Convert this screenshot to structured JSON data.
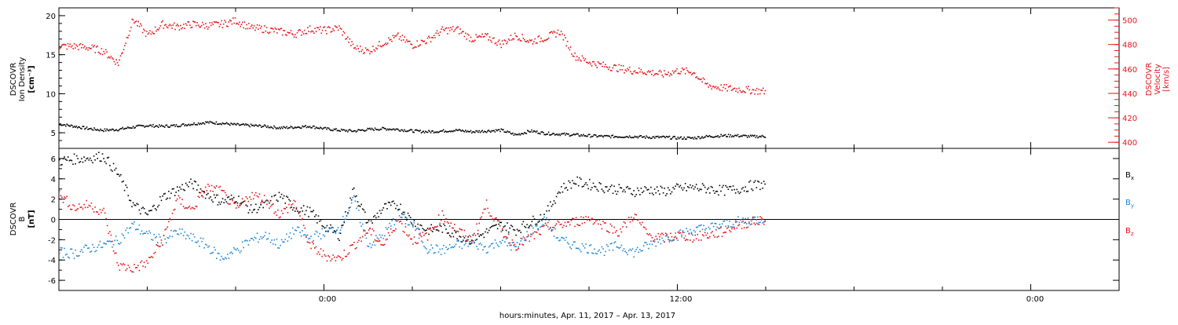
{
  "figure": {
    "xlabel": "hours:minutes, Apr. 11, 2017 – Apr. 13, 2017",
    "x_tick_labels": [
      "0:00",
      "12:00",
      "0:00"
    ]
  },
  "chart_data": [
    {
      "type": "scatter",
      "panel": "top",
      "ylabel_left": [
        "DSCOVR",
        "Ion Density",
        "[cm⁻³]"
      ],
      "ylabel_right": [
        "DSCOVR",
        "Velocity",
        "[km/s]"
      ],
      "x_unit": "hours since Apr. 11, 2017 0:00",
      "xlim": [
        -9,
        27
      ],
      "ylim_left": [
        3,
        21
      ],
      "ylim_right": [
        395,
        510
      ],
      "left_ticks": [
        5,
        10,
        15,
        20
      ],
      "right_ticks": [
        400,
        420,
        440,
        460,
        480,
        500
      ],
      "series": [
        {
          "name": "Ion Density",
          "axis": "left",
          "color": "#000000",
          "x": [
            -9.0,
            -8.5,
            -8.0,
            -7.5,
            -7.0,
            -6.5,
            -6.0,
            -5.5,
            -5.0,
            -4.5,
            -4.0,
            -3.5,
            -3.0,
            -2.5,
            -2.0,
            -1.5,
            -1.0,
            -0.5,
            0.0,
            0.5,
            1.0,
            1.5,
            2.0,
            2.5,
            3.0,
            3.5,
            4.0,
            4.5,
            5.0,
            5.5,
            6.0,
            6.5,
            7.0,
            7.5,
            8.0,
            8.5,
            9.0,
            9.5,
            10.0,
            10.5,
            11.0,
            11.5,
            12.0,
            12.5,
            13.0,
            13.5,
            14.0,
            14.5,
            15.0
          ],
          "y": [
            6.2,
            5.9,
            5.6,
            5.4,
            5.5,
            5.8,
            6.0,
            5.9,
            6.0,
            6.2,
            6.4,
            6.3,
            6.1,
            6.0,
            5.9,
            5.7,
            5.8,
            5.9,
            5.6,
            5.4,
            5.3,
            5.5,
            5.6,
            5.5,
            5.3,
            5.2,
            5.3,
            5.4,
            5.2,
            5.3,
            5.4,
            4.8,
            5.3,
            5.0,
            4.9,
            4.8,
            4.7,
            4.6,
            4.6,
            4.6,
            4.5,
            4.5,
            4.4,
            4.4,
            4.6,
            4.7,
            4.7,
            4.6,
            4.6
          ]
        },
        {
          "name": "Velocity",
          "axis": "right",
          "color": "#e8141a",
          "x": [
            -9.0,
            -8.5,
            -8.0,
            -7.5,
            -7.0,
            -6.5,
            -6.0,
            -5.5,
            -5.0,
            -4.5,
            -4.0,
            -3.5,
            -3.0,
            -2.5,
            -2.0,
            -1.5,
            -1.0,
            -0.5,
            0.0,
            0.5,
            1.0,
            1.5,
            2.0,
            2.5,
            3.0,
            3.5,
            4.0,
            4.5,
            5.0,
            5.5,
            6.0,
            6.5,
            7.0,
            7.5,
            8.0,
            8.5,
            9.0,
            9.5,
            10.0,
            10.5,
            11.0,
            11.5,
            12.0,
            12.5,
            13.0,
            13.5,
            14.0,
            14.5,
            15.0
          ],
          "y": [
            479,
            479,
            478,
            475,
            465,
            501,
            488,
            497,
            495,
            497,
            496,
            497,
            500,
            494,
            493,
            491,
            489,
            493,
            492,
            494,
            478,
            475,
            482,
            487,
            480,
            484,
            492,
            493,
            485,
            487,
            481,
            488,
            483,
            486,
            491,
            471,
            466,
            463,
            461,
            459,
            458,
            456,
            459,
            458,
            447,
            445,
            444,
            443,
            442
          ]
        }
      ]
    },
    {
      "type": "scatter",
      "panel": "bottom",
      "ylabel_left": [
        "DSCOVR",
        "B",
        "[nT]"
      ],
      "x_unit": "hours since Apr. 11, 2017 0:00",
      "xlim": [
        -9,
        27
      ],
      "ylim": [
        -7,
        7
      ],
      "y_ticks": [
        -6,
        -4,
        -2,
        0,
        2,
        4,
        6
      ],
      "reference_line": 0,
      "legend_placement": "right",
      "series": [
        {
          "name": "B",
          "subscript": "x",
          "color": "#000000",
          "x": [
            -9.0,
            -8.5,
            -8.0,
            -7.5,
            -7.0,
            -6.5,
            -6.0,
            -5.5,
            -5.0,
            -4.5,
            -4.0,
            -3.5,
            -3.0,
            -2.5,
            -2.0,
            -1.5,
            -1.0,
            -0.5,
            0.0,
            0.5,
            1.0,
            1.5,
            2.0,
            2.5,
            3.0,
            3.5,
            4.0,
            4.5,
            5.0,
            5.5,
            6.0,
            6.5,
            7.0,
            7.5,
            8.0,
            8.5,
            9.0,
            9.5,
            10.0,
            10.5,
            11.0,
            11.5,
            12.0,
            12.5,
            13.0,
            13.5,
            14.0,
            14.5,
            15.0
          ],
          "y": [
            5.8,
            6.0,
            6.1,
            6.3,
            4.5,
            1.5,
            0.5,
            2.2,
            3.0,
            3.6,
            2.5,
            1.8,
            2.2,
            1.0,
            1.5,
            2.4,
            1.2,
            0.8,
            -0.6,
            -1.5,
            3.0,
            -0.5,
            1.2,
            1.5,
            -0.2,
            -1.0,
            -0.8,
            -1.5,
            -2.0,
            -1.2,
            -0.5,
            -1.0,
            -0.2,
            0.5,
            3.0,
            3.8,
            3.5,
            3.2,
            3.0,
            2.8,
            3.0,
            2.8,
            3.1,
            3.2,
            3.1,
            2.9,
            3.0,
            3.4,
            3.5
          ]
        },
        {
          "name": "B",
          "subscript": "y",
          "color": "#1f86d8",
          "x": [
            -9.0,
            -8.5,
            -8.0,
            -7.5,
            -7.0,
            -6.5,
            -6.0,
            -5.5,
            -5.0,
            -4.5,
            -4.0,
            -3.5,
            -3.0,
            -2.5,
            -2.0,
            -1.5,
            -1.0,
            -0.5,
            0.0,
            0.5,
            1.0,
            1.5,
            2.0,
            2.5,
            3.0,
            3.5,
            4.0,
            4.5,
            5.0,
            5.5,
            6.0,
            6.5,
            7.0,
            7.5,
            8.0,
            8.5,
            9.0,
            9.5,
            10.0,
            10.5,
            11.0,
            11.5,
            12.0,
            12.5,
            13.0,
            13.5,
            14.0,
            14.5,
            15.0
          ],
          "y": [
            -3.2,
            -3.3,
            -2.8,
            -2.5,
            -2.0,
            -0.5,
            -1.5,
            -2.0,
            -1.2,
            -1.8,
            -2.5,
            -3.8,
            -3.0,
            -2.0,
            -1.5,
            -2.5,
            -1.0,
            -1.8,
            -1.2,
            -0.8,
            2.0,
            -2.5,
            -1.5,
            0.5,
            -0.5,
            -2.8,
            -3.0,
            -2.5,
            -2.2,
            -2.8,
            -2.0,
            -2.8,
            -1.0,
            0.0,
            -2.0,
            -2.5,
            -2.8,
            -3.0,
            -2.5,
            -3.2,
            -2.5,
            -1.8,
            -1.5,
            -1.0,
            -0.8,
            -0.5,
            -0.2,
            0.0,
            0.2
          ]
        },
        {
          "name": "B",
          "subscript": "z",
          "color": "#e8141a",
          "x": [
            -9.0,
            -8.5,
            -8.0,
            -7.5,
            -7.0,
            -6.5,
            -6.0,
            -5.5,
            -5.0,
            -4.5,
            -4.0,
            -3.5,
            -3.0,
            -2.5,
            -2.0,
            -1.5,
            -1.0,
            -0.5,
            0.0,
            0.5,
            1.0,
            1.5,
            2.0,
            2.5,
            3.0,
            3.5,
            4.0,
            4.5,
            5.0,
            5.5,
            6.0,
            6.5,
            7.0,
            7.5,
            8.0,
            8.5,
            9.0,
            9.5,
            10.0,
            10.5,
            11.0,
            11.5,
            12.0,
            12.5,
            13.0,
            13.5,
            14.0,
            14.5,
            15.0
          ],
          "y": [
            2.5,
            1.2,
            1.5,
            0.8,
            -4.5,
            -4.8,
            -4.2,
            -2.0,
            2.0,
            1.0,
            3.2,
            2.8,
            1.0,
            2.5,
            2.0,
            0.5,
            1.8,
            -2.5,
            -3.5,
            -3.8,
            -2.5,
            -1.0,
            -2.5,
            0.0,
            -2.0,
            -1.5,
            0.5,
            -1.0,
            -2.0,
            1.5,
            -1.0,
            -2.5,
            -1.8,
            -0.8,
            -0.5,
            -0.2,
            0.2,
            -0.5,
            -1.2,
            0.5,
            -1.5,
            -1.8,
            -1.5,
            -1.7,
            -1.5,
            -1.2,
            -0.5,
            -0.2,
            0.0
          ]
        }
      ]
    }
  ]
}
